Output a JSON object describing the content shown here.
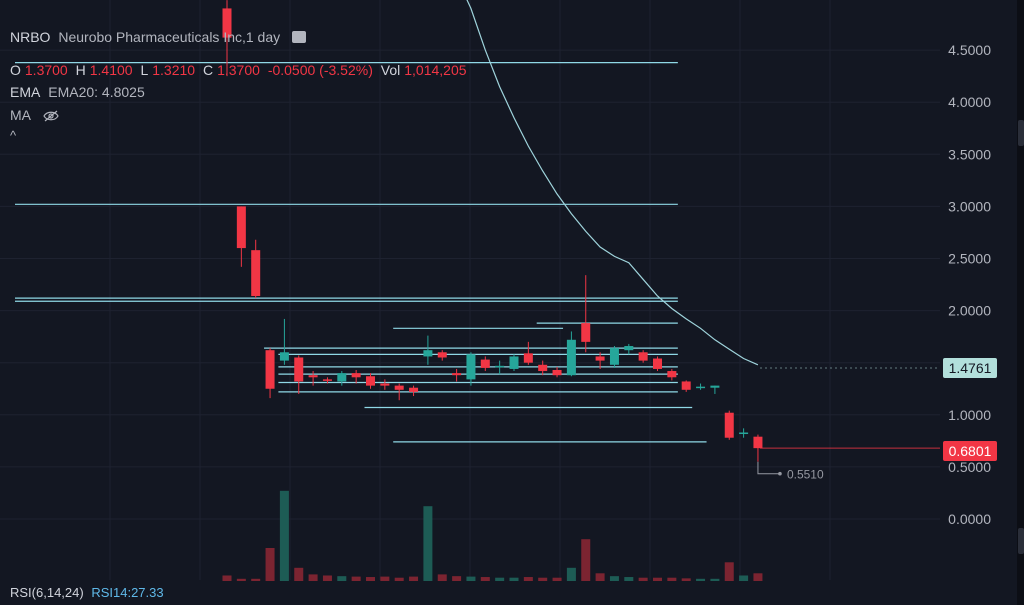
{
  "header": {
    "symbol": "NRBO",
    "title": "Neurobo Pharmaceuticals Inc,1 day",
    "ohlc": {
      "o_label": "O",
      "o_value": "1.3700",
      "h_label": "H",
      "h_value": "1.4100",
      "l_label": "L",
      "l_value": "1.3210",
      "c_label": "C",
      "c_value": "1.3700",
      "change": "-0.0500 (-3.52%)",
      "vol_label": "Vol",
      "vol_value": "1,014,205"
    },
    "ema": {
      "label": "EMA",
      "value": "EMA20: 4.8025"
    },
    "ma": {
      "label": "MA"
    },
    "collapse_glyph": "^"
  },
  "price_tags": {
    "ema": "1.4761",
    "last": "0.6801"
  },
  "low_marker": "0.5510",
  "rsi": {
    "label": "RSI(6,14,24)",
    "value": "RSI14:27.33"
  },
  "colors": {
    "up": "#26a69a",
    "down": "#f23645",
    "line": "#8fd8e6",
    "grid": "#1e2230",
    "bg": "#131722"
  },
  "chart_data": {
    "type": "candlestick",
    "y_axis": {
      "ticks": [
        "4.5000",
        "4.0000",
        "3.5000",
        "3.0000",
        "2.5000",
        "2.0000",
        "1.5000",
        "1.0000",
        "0.5000",
        "0.0000"
      ],
      "range": [
        -0.3,
        5.0
      ]
    },
    "candles": [
      {
        "o": 4.9,
        "h": 4.98,
        "l": 4.25,
        "c": 4.62
      },
      {
        "o": 3.0,
        "h": 3.0,
        "l": 2.42,
        "c": 2.6
      },
      {
        "o": 2.58,
        "h": 2.68,
        "l": 2.12,
        "c": 2.14
      },
      {
        "o": 1.62,
        "h": 1.64,
        "l": 1.16,
        "c": 1.25
      },
      {
        "o": 1.52,
        "h": 1.92,
        "l": 1.48,
        "c": 1.6
      },
      {
        "o": 1.55,
        "h": 1.57,
        "l": 1.2,
        "c": 1.32
      },
      {
        "o": 1.38,
        "h": 1.42,
        "l": 1.28,
        "c": 1.36
      },
      {
        "o": 1.34,
        "h": 1.36,
        "l": 1.3,
        "c": 1.33
      },
      {
        "o": 1.32,
        "h": 1.42,
        "l": 1.28,
        "c": 1.4
      },
      {
        "o": 1.4,
        "h": 1.43,
        "l": 1.3,
        "c": 1.36
      },
      {
        "o": 1.37,
        "h": 1.4,
        "l": 1.25,
        "c": 1.28
      },
      {
        "o": 1.3,
        "h": 1.34,
        "l": 1.24,
        "c": 1.28
      },
      {
        "o": 1.28,
        "h": 1.3,
        "l": 1.14,
        "c": 1.24
      },
      {
        "o": 1.26,
        "h": 1.28,
        "l": 1.18,
        "c": 1.22
      },
      {
        "o": 1.56,
        "h": 1.76,
        "l": 1.48,
        "c": 1.62
      },
      {
        "o": 1.6,
        "h": 1.62,
        "l": 1.52,
        "c": 1.55
      },
      {
        "o": 1.4,
        "h": 1.44,
        "l": 1.32,
        "c": 1.38
      },
      {
        "o": 1.34,
        "h": 1.6,
        "l": 1.28,
        "c": 1.58
      },
      {
        "o": 1.53,
        "h": 1.56,
        "l": 1.42,
        "c": 1.45
      },
      {
        "o": 1.46,
        "h": 1.52,
        "l": 1.39,
        "c": 1.47
      },
      {
        "o": 1.44,
        "h": 1.58,
        "l": 1.42,
        "c": 1.56
      },
      {
        "o": 1.59,
        "h": 1.7,
        "l": 1.48,
        "c": 1.5
      },
      {
        "o": 1.48,
        "h": 1.52,
        "l": 1.38,
        "c": 1.42
      },
      {
        "o": 1.43,
        "h": 1.46,
        "l": 1.36,
        "c": 1.38
      },
      {
        "o": 1.38,
        "h": 1.8,
        "l": 1.37,
        "c": 1.72
      },
      {
        "o": 1.88,
        "h": 2.34,
        "l": 1.6,
        "c": 1.7
      },
      {
        "o": 1.56,
        "h": 1.6,
        "l": 1.44,
        "c": 1.52
      },
      {
        "o": 1.48,
        "h": 1.66,
        "l": 1.45,
        "c": 1.64
      },
      {
        "o": 1.62,
        "h": 1.68,
        "l": 1.58,
        "c": 1.66
      },
      {
        "o": 1.6,
        "h": 1.62,
        "l": 1.5,
        "c": 1.52
      },
      {
        "o": 1.54,
        "h": 1.56,
        "l": 1.42,
        "c": 1.44
      },
      {
        "o": 1.42,
        "h": 1.44,
        "l": 1.33,
        "c": 1.36
      },
      {
        "o": 1.32,
        "h": 1.33,
        "l": 1.22,
        "c": 1.24
      },
      {
        "o": 1.26,
        "h": 1.3,
        "l": 1.24,
        "c": 1.27
      },
      {
        "o": 1.26,
        "h": 1.28,
        "l": 1.2,
        "c": 1.28
      },
      {
        "o": 1.02,
        "h": 1.04,
        "l": 0.76,
        "c": 0.78
      },
      {
        "o": 0.82,
        "h": 0.87,
        "l": 0.78,
        "c": 0.83
      },
      {
        "o": 0.79,
        "h": 0.81,
        "l": 0.55,
        "c": 0.68
      }
    ],
    "volume": [
      0.25,
      0.1,
      0.1,
      1.5,
      4.1,
      0.6,
      0.3,
      0.25,
      0.22,
      0.2,
      0.18,
      0.2,
      0.15,
      0.2,
      3.4,
      0.3,
      0.22,
      0.2,
      0.18,
      0.15,
      0.15,
      0.18,
      0.15,
      0.15,
      0.6,
      1.9,
      0.35,
      0.22,
      0.18,
      0.15,
      0.15,
      0.15,
      0.12,
      0.1,
      0.1,
      0.85,
      0.25,
      0.35
    ],
    "ema20": [
      5.2,
      4.9,
      4.5,
      4.15,
      3.85,
      3.58,
      3.34,
      3.12,
      2.93,
      2.76,
      2.61,
      2.52,
      2.46,
      2.3,
      2.14,
      2.02,
      1.92,
      1.83,
      1.72,
      1.63,
      1.54,
      1.48
    ],
    "ema20_start_index": 16,
    "levels": [
      {
        "price": 4.38,
        "from": 0,
        "to": 31
      },
      {
        "price": 3.02,
        "from": 0,
        "to": 31
      },
      {
        "price": 2.12,
        "from": 0,
        "to": 31
      },
      {
        "price": 2.09,
        "from": 0,
        "to": 31
      },
      {
        "price": 1.83,
        "from": 12,
        "to": 23
      },
      {
        "price": 1.88,
        "from": 22,
        "to": 31
      },
      {
        "price": 1.64,
        "from": 3,
        "to": 31
      },
      {
        "price": 1.58,
        "from": 4,
        "to": 31
      },
      {
        "price": 1.46,
        "from": 4,
        "to": 31
      },
      {
        "price": 1.39,
        "from": 4,
        "to": 31
      },
      {
        "price": 1.31,
        "from": 4,
        "to": 31
      },
      {
        "price": 1.22,
        "from": 4,
        "to": 31
      },
      {
        "price": 1.07,
        "from": 10,
        "to": 32
      },
      {
        "price": 0.74,
        "from": 12,
        "to": 33
      }
    ]
  }
}
